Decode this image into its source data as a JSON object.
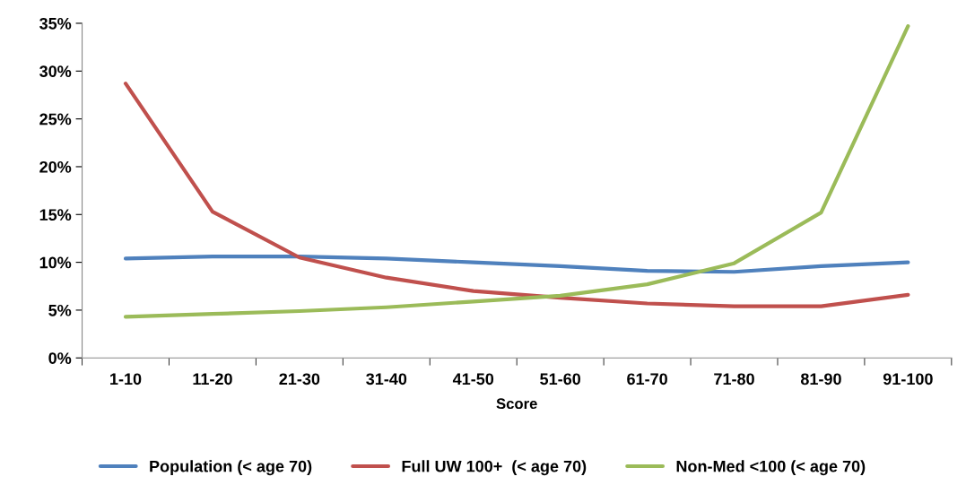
{
  "chart_data": {
    "type": "line",
    "xlabel": "Score",
    "categories": [
      "1-10",
      "11-20",
      "21-30",
      "31-40",
      "41-50",
      "51-60",
      "61-70",
      "71-80",
      "81-90",
      "91-100"
    ],
    "series": [
      {
        "name": "Population (< age 70)",
        "color": "#4f81bd",
        "values": [
          10.4,
          10.6,
          10.6,
          10.4,
          10.0,
          9.6,
          9.1,
          9.0,
          9.6,
          10.0
        ]
      },
      {
        "name": "Full UW 100+  (< age 70)",
        "color": "#c0504d",
        "values": [
          28.7,
          15.3,
          10.5,
          8.4,
          7.0,
          6.3,
          5.7,
          5.4,
          5.4,
          6.6
        ]
      },
      {
        "name": "Non-Med <100 (< age 70)",
        "color": "#9bbb59",
        "values": [
          4.3,
          4.6,
          4.9,
          5.3,
          5.9,
          6.5,
          7.7,
          9.9,
          15.2,
          34.7
        ]
      }
    ],
    "ylim": [
      0,
      35
    ],
    "yticks": [
      {
        "value": 0,
        "label": "0%"
      },
      {
        "value": 5,
        "label": "5%"
      },
      {
        "value": 10,
        "label": "10%"
      },
      {
        "value": 15,
        "label": "15%"
      },
      {
        "value": 20,
        "label": "20%"
      },
      {
        "value": 25,
        "label": "25%"
      },
      {
        "value": 30,
        "label": "30%"
      },
      {
        "value": 35,
        "label": "35%"
      }
    ],
    "grid": false,
    "legend": "bottom",
    "marker": "none",
    "line_style": "solid"
  }
}
